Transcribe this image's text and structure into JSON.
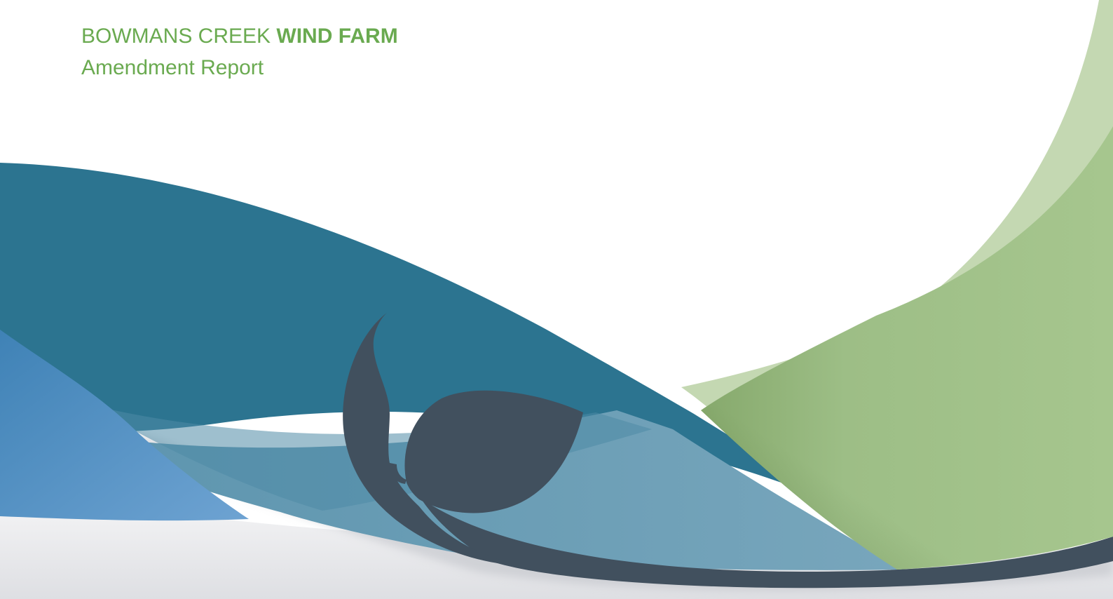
{
  "document": {
    "title_regular": "BOWMANS CREEK ",
    "title_bold": "WIND FARM",
    "subtitle": "Amendment Report"
  },
  "colors": {
    "title_green": "#6aaa50",
    "teal_dark": "#2c7490",
    "teal_light": "#6f9fb6",
    "slate": "#41505e",
    "blue_light": "#5f95c4",
    "green_main": "#a2c38a",
    "green_pale": "#c4d8b2",
    "ground_grey": "#e4e5e8"
  },
  "graphics": {
    "leaf_logo_icon": "leaf-sprout-icon"
  }
}
